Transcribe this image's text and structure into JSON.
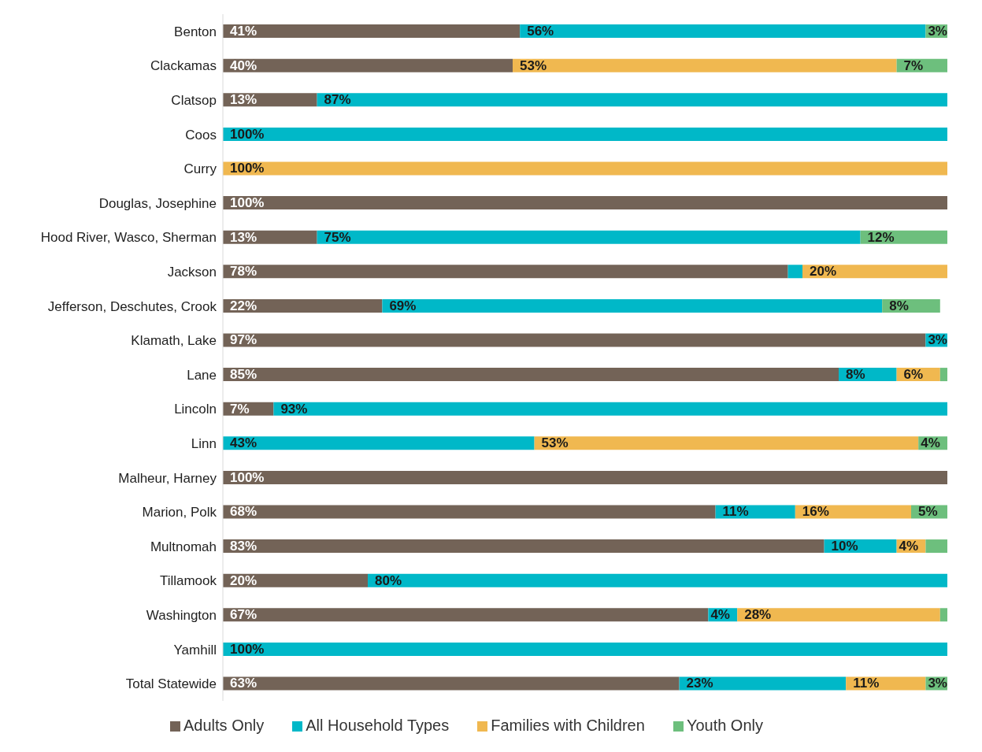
{
  "chart_data": {
    "type": "bar",
    "orientation": "horizontal",
    "stacked": true,
    "legend": "bottom",
    "grid": false,
    "xlim": [
      0,
      100
    ],
    "categories": [
      "Benton",
      "Clackamas",
      "Clatsop",
      "Coos",
      "Curry",
      "Douglas, Josephine",
      "Hood River, Wasco, Sherman",
      "Jackson",
      "Jefferson, Deschutes, Crook",
      "Klamath, Lake",
      "Lane",
      "Lincoln",
      "Linn",
      "Malheur, Harney",
      "Marion, Polk",
      "Multnomah",
      "Tillamook",
      "Washington",
      "Yamhill",
      "Total Statewide"
    ],
    "series": [
      {
        "name": "Adults Only",
        "color": "#736357",
        "values": [
          41,
          40,
          13,
          null,
          null,
          100,
          13,
          78,
          22,
          97,
          85,
          7,
          null,
          100,
          68,
          83,
          20,
          67,
          null,
          63
        ],
        "value_labels": [
          "41%",
          "40%",
          "13%",
          null,
          null,
          "100%",
          "13%",
          "78%",
          "22%",
          "97%",
          "85%",
          "7%",
          null,
          "100%",
          "68%",
          "83%",
          "20%",
          "67%",
          null,
          "63%"
        ]
      },
      {
        "name": "All Household Types",
        "color": "#00b8c8",
        "values": [
          56,
          null,
          87,
          100,
          null,
          null,
          75,
          2,
          69,
          3,
          8,
          93,
          43,
          null,
          11,
          10,
          80,
          4,
          100,
          23
        ],
        "value_labels": [
          "56%",
          null,
          "87%",
          "100%",
          null,
          null,
          "75%",
          null,
          "69%",
          "3%",
          "8%",
          "93%",
          "43%",
          null,
          "11%",
          "10%",
          "80%",
          "4%",
          "100%",
          "23%"
        ]
      },
      {
        "name": "Families with Children",
        "color": "#f0b850",
        "values": [
          null,
          53,
          null,
          null,
          100,
          null,
          null,
          20,
          null,
          null,
          6,
          null,
          53,
          null,
          16,
          4,
          null,
          28,
          null,
          11
        ],
        "value_labels": [
          null,
          "53%",
          null,
          null,
          "100%",
          null,
          null,
          "20%",
          null,
          null,
          "6%",
          null,
          "53%",
          null,
          "16%",
          "4%",
          null,
          "28%",
          null,
          "11%"
        ]
      },
      {
        "name": "Youth Only",
        "color": "#6dbf7d",
        "values": [
          3,
          7,
          null,
          null,
          null,
          null,
          12,
          null,
          8,
          null,
          1,
          null,
          4,
          null,
          5,
          3,
          null,
          1,
          null,
          3
        ],
        "value_labels": [
          "3%",
          "7%",
          null,
          null,
          null,
          null,
          "12%",
          null,
          "8%",
          null,
          null,
          null,
          "4%",
          null,
          "5%",
          null,
          null,
          null,
          null,
          "3%"
        ]
      }
    ]
  }
}
